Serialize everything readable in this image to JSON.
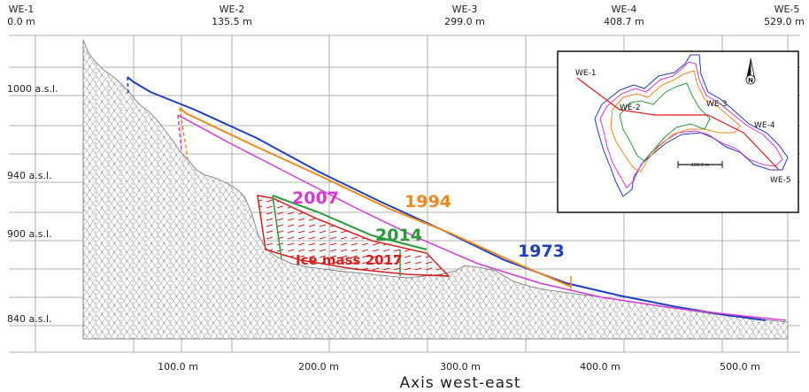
{
  "figure": {
    "x_axis_title": "Axis west-east",
    "x_ticks": [
      "100.0 m",
      "200.0 m",
      "300.0 m",
      "400.0 m",
      "500.0 m"
    ],
    "profiles": [
      {
        "name": "WE-1",
        "dist": "0.0 m"
      },
      {
        "name": "WE-2",
        "dist": "135.5 m"
      },
      {
        "name": "WE-3",
        "dist": "299.0 m"
      },
      {
        "name": "WE-4",
        "dist": "408.7 m"
      },
      {
        "name": "WE-5",
        "dist": "529.0 m"
      }
    ],
    "elevation_labels": [
      "1000 a.s.l.",
      "940 a.s.l.",
      "900 a.s.l.",
      "840 a.s.l."
    ],
    "labels": {
      "y1973": "1973",
      "y1994": "1994",
      "y2007": "2007",
      "y2014": "2014",
      "ice2017": "Ice mass 2017"
    },
    "colors": {
      "y1973": "#1f3fbf",
      "y1994": "#f08a1c",
      "y2007": "#d63ad6",
      "y2014": "#2a9a3a",
      "ice2017": "#d81e1e",
      "terrain_edge": "#8a8a8a",
      "grid": "#9a9a9a"
    },
    "inset": {
      "labels": [
        "WE-1",
        "WE-2",
        "WE-3",
        "WE-4",
        "WE-5"
      ],
      "scale_label": "100.0 m",
      "north_label": "N"
    }
  }
}
